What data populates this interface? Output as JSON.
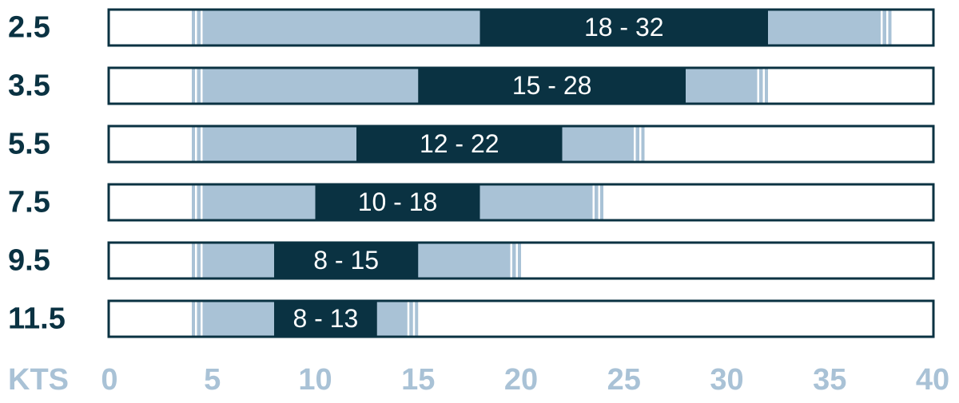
{
  "chart_data": {
    "type": "range",
    "categories": [
      "2.5",
      "3.5",
      "5.5",
      "7.5",
      "9.5",
      "11.5"
    ],
    "extended_low": [
      4,
      4,
      4,
      4,
      4,
      4
    ],
    "extended_high": [
      38,
      32,
      26,
      24,
      20,
      15
    ],
    "core_low": [
      18,
      15,
      12,
      10,
      8,
      8
    ],
    "core_high": [
      32,
      28,
      22,
      18,
      15,
      13
    ],
    "value_labels": [
      "18 - 32",
      "15 - 28",
      "12 - 22",
      "10 - 18",
      "8 - 15",
      "8 - 13"
    ],
    "x_label": "KTS",
    "xlim": [
      0,
      40
    ],
    "xticks": [
      0,
      5,
      10,
      15,
      20,
      25,
      30,
      35,
      40
    ],
    "core_color": "#0a3242",
    "extended_color": "#a9c2d6",
    "frame_color": "#0a3242"
  }
}
